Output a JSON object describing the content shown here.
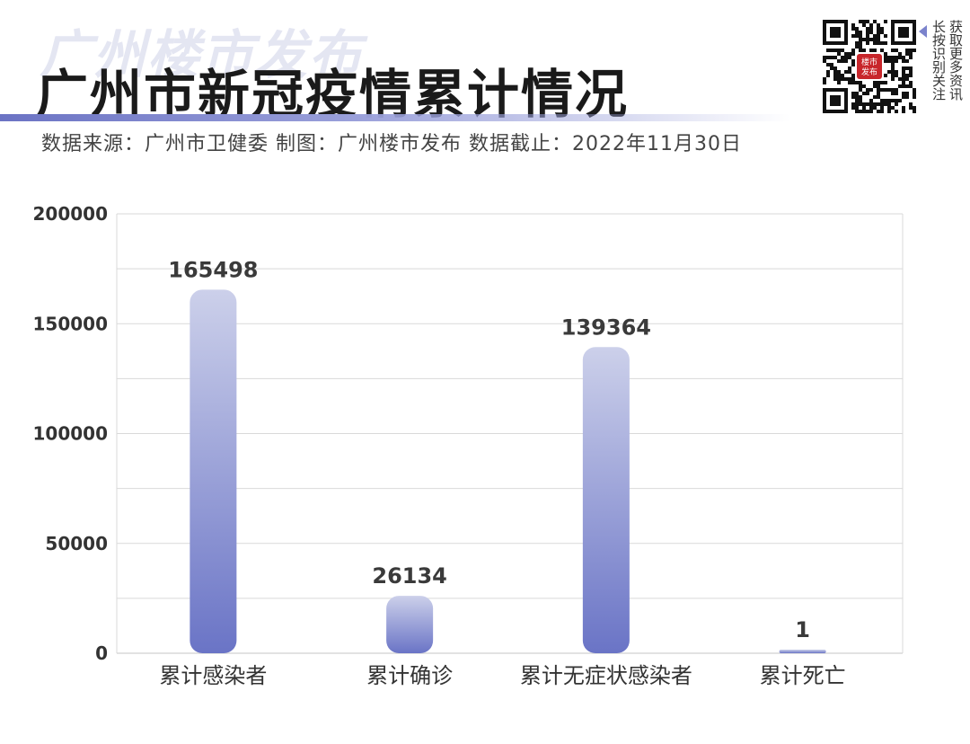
{
  "header": {
    "watermark": "广州楼市发布",
    "title": "广州市新冠疫情累计情况",
    "subtitle": "数据来源：广州市卫健委  制图：广州楼市发布  数据截止：2022年11月30日"
  },
  "qr": {
    "icon": "qr-code-icon",
    "center_label_top": "楼市",
    "center_label_bottom": "发布",
    "col1": "长按识别关注",
    "col2": "获取更多资讯"
  },
  "colors": {
    "bar_top": "#ccd0ea",
    "bar_bottom": "#6a74c6",
    "grid": "#d9d9d9",
    "axis_text": "#333333",
    "label_text": "#3a3a3a"
  },
  "chart_data": {
    "type": "bar",
    "categories": [
      "累计感染者",
      "累计确诊",
      "累计无症状感染者",
      "累计死亡"
    ],
    "values": [
      165498,
      26134,
      139364,
      1
    ],
    "value_labels": [
      "165498",
      "26134",
      "139364",
      "1"
    ],
    "ylim": [
      0,
      200000
    ],
    "y_ticks": [
      0,
      50000,
      100000,
      150000,
      200000
    ],
    "y_tick_labels": [
      "0",
      "50000",
      "100000",
      "150000",
      "200000"
    ],
    "grid": true,
    "legend": "none"
  }
}
